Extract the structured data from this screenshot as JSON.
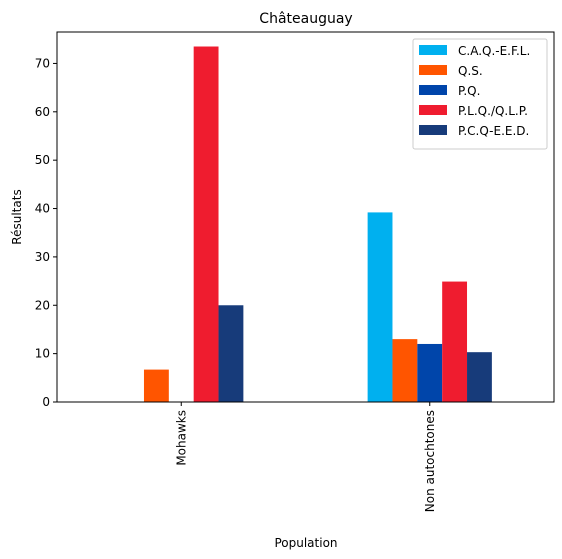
{
  "chart_data": {
    "type": "bar",
    "title": "Châteauguay",
    "xlabel": "Population",
    "ylabel": "Résultats",
    "categories": [
      "Mohawks",
      "Non autochtones"
    ],
    "ylim": [
      0,
      76.5
    ],
    "yticks": [
      0,
      10,
      20,
      30,
      40,
      50,
      60,
      70
    ],
    "grid": false,
    "legend_position": "top-right",
    "series": [
      {
        "name": "C.A.Q.-E.F.L.",
        "color": "#00b0ef",
        "values": [
          0,
          39.2
        ]
      },
      {
        "name": "Q.S.",
        "color": "#ff5500",
        "values": [
          6.7,
          13.0
        ]
      },
      {
        "name": "P.Q.",
        "color": "#0045aa",
        "values": [
          0,
          12.0
        ]
      },
      {
        "name": "P.L.Q./Q.L.P.",
        "color": "#ef1c2f",
        "values": [
          73.5,
          24.9
        ]
      },
      {
        "name": "P.C.Q-E.E.D.",
        "color": "#173b7a",
        "values": [
          20.0,
          10.3
        ]
      }
    ]
  }
}
